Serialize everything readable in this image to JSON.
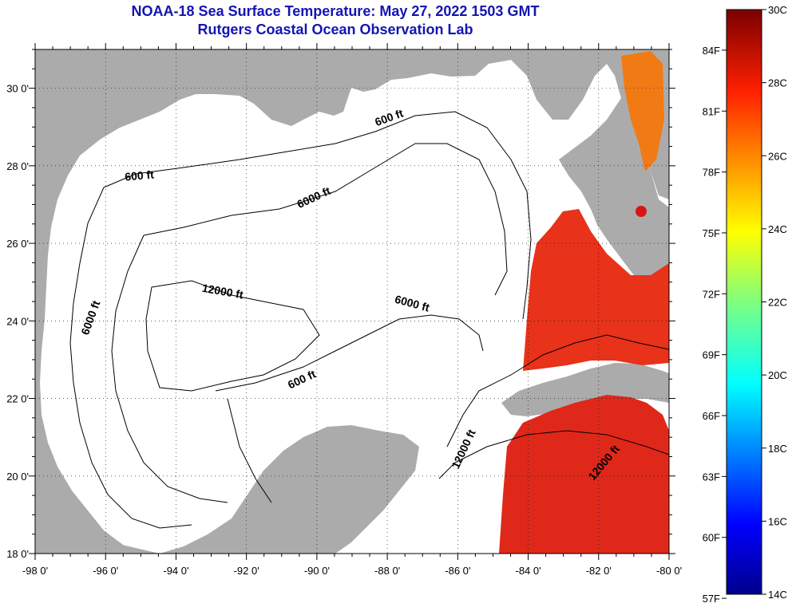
{
  "title": "NOAA-18 Sea Surface Temperature:  May 27, 2022 1503 GMT",
  "subtitle": "Rutgers Coastal Ocean Observation Lab",
  "map": {
    "lon_range": [
      -98,
      -80
    ],
    "lat_range": [
      18,
      31
    ],
    "lon_ticks": [
      "-98 0'",
      "-96 0'",
      "-94 0'",
      "-92 0'",
      "-90 0'",
      "-88 0'",
      "-86 0'",
      "-84 0'",
      "-82 0'",
      "-80 0'"
    ],
    "lat_ticks": [
      "18 0'",
      "20 0'",
      "22 0'",
      "24 0'",
      "26 0'",
      "28 0'",
      "30 0'"
    ],
    "contour_labels": [
      "600 ft",
      "600 ft",
      "6000 ft",
      "12000 ft",
      "6000 ft",
      "6000 ft",
      "600 ft",
      "12000 ft",
      "12000 ft"
    ],
    "colors": {
      "land": "#ababab",
      "water": "#ffffff",
      "contour": "#000000"
    }
  },
  "colorbar": {
    "celsius": [
      "30C",
      "28C",
      "26C",
      "24C",
      "22C",
      "20C",
      "18C",
      "16C",
      "14C"
    ],
    "fahrenheit": [
      "84F",
      "81F",
      "78F",
      "75F",
      "72F",
      "69F",
      "66F",
      "63F",
      "60F",
      "57F"
    ],
    "range_c": [
      14,
      30
    ]
  }
}
